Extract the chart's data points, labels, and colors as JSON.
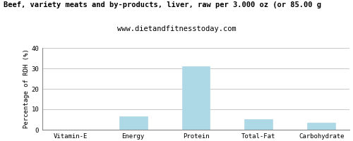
{
  "title": "Beef, variety meats and by-products, liver, raw per 3.000 oz (or 85.00 g",
  "subtitle": "www.dietandfitnesstoday.com",
  "categories": [
    "Vitamin-E",
    "Energy",
    "Protein",
    "Total-Fat",
    "Carbohydrate"
  ],
  "values": [
    0.0,
    6.5,
    31.0,
    5.2,
    3.3
  ],
  "bar_color": "#add8e6",
  "ylabel": "Percentage of RDH (%)",
  "ylim": [
    0,
    40
  ],
  "yticks": [
    0,
    10,
    20,
    30,
    40
  ],
  "bg_color": "#ffffff",
  "grid_color": "#c8c8c8",
  "title_fontsize": 7.5,
  "subtitle_fontsize": 7.5,
  "ylabel_fontsize": 6.5,
  "tick_fontsize": 6.5,
  "bar_width": 0.45
}
